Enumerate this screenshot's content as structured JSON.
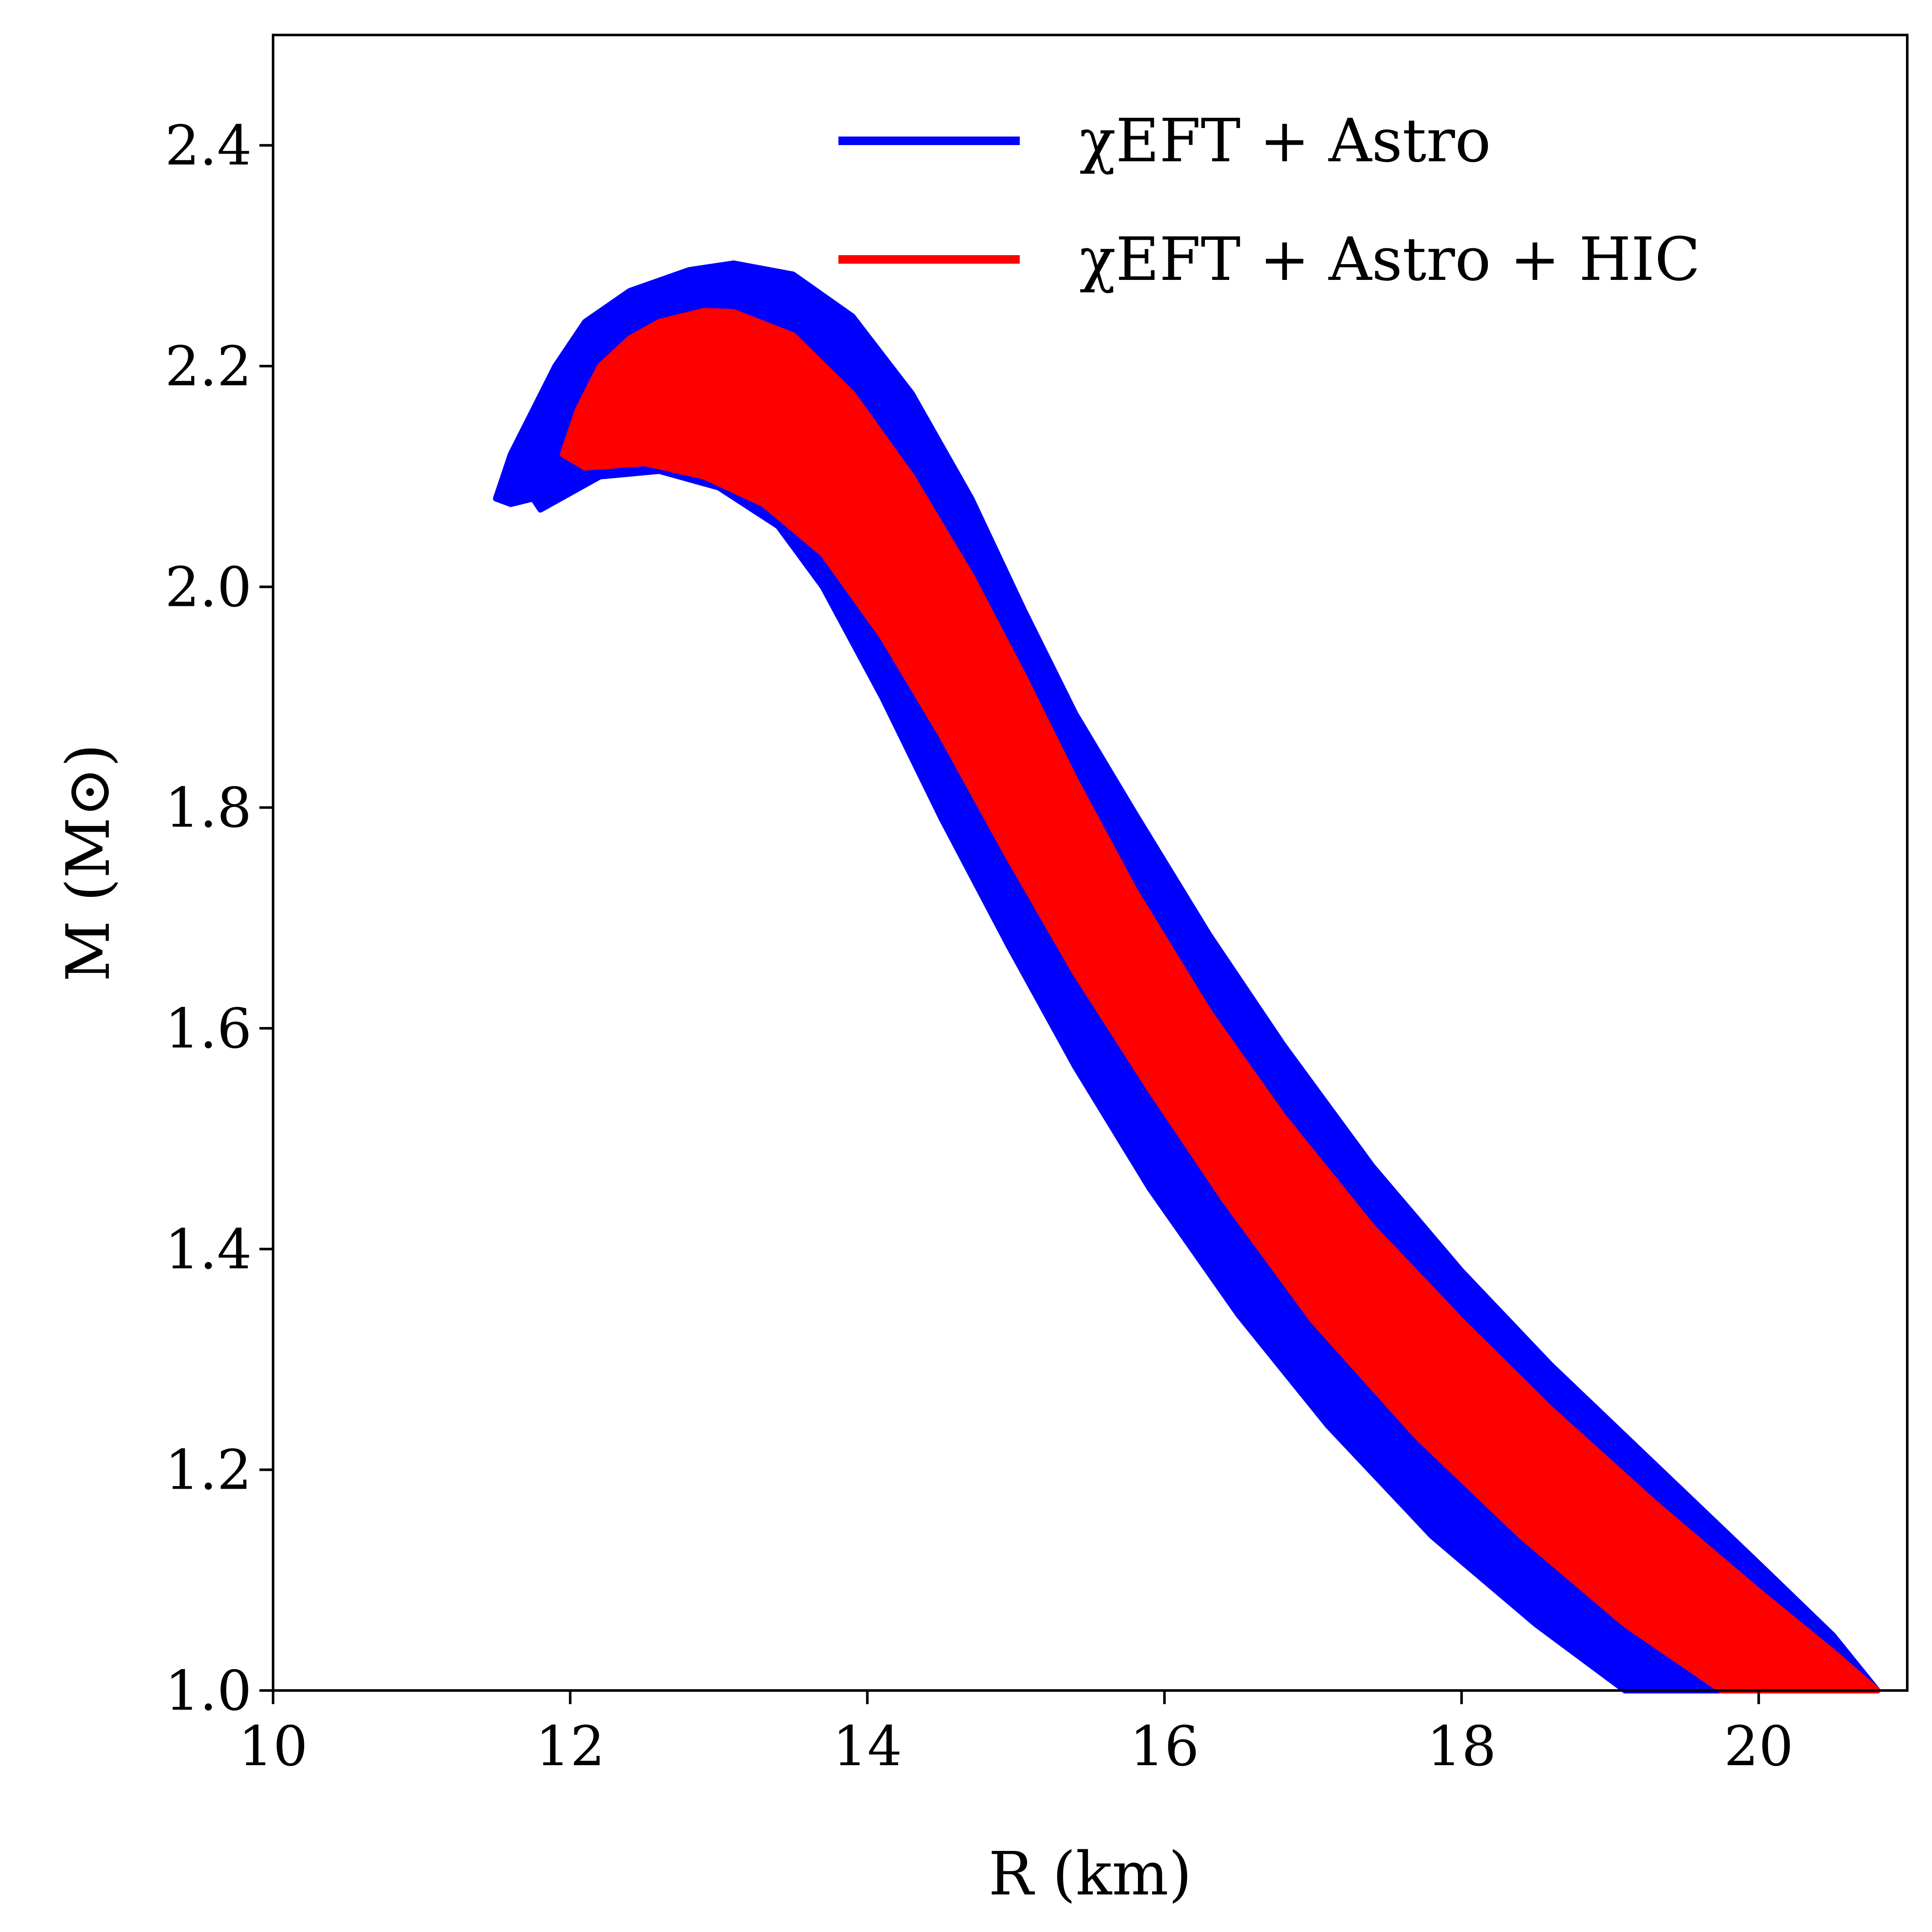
{
  "chart_data": {
    "type": "area",
    "title": "",
    "xlabel": "R (km)",
    "ylabel": "M (M⊙)",
    "xlim": [
      10,
      21
    ],
    "ylim": [
      1.0,
      2.5
    ],
    "xticks": [
      "10",
      "12",
      "14",
      "16",
      "18",
      "20"
    ],
    "yticks": [
      "1.0",
      "1.2",
      "1.4",
      "1.6",
      "1.8",
      "2.0",
      "2.2",
      "2.4"
    ],
    "xtick_values": [
      10,
      12,
      14,
      16,
      18,
      20
    ],
    "ytick_values": [
      1.0,
      1.2,
      1.4,
      1.6,
      1.8,
      2.0,
      2.2,
      2.4
    ],
    "grid": false,
    "legend_position": "top-right",
    "series": [
      {
        "name": "χEFT + Astro",
        "color": "#0000ff",
        "outer_boundary": [
          [
            11.5,
            2.08
          ],
          [
            11.6,
            2.12
          ],
          [
            11.75,
            2.16
          ],
          [
            11.9,
            2.2
          ],
          [
            12.1,
            2.24
          ],
          [
            12.4,
            2.268
          ],
          [
            12.8,
            2.287
          ],
          [
            13.1,
            2.293
          ],
          [
            13.5,
            2.283
          ],
          [
            13.9,
            2.245
          ],
          [
            14.3,
            2.175
          ],
          [
            14.7,
            2.08
          ],
          [
            15.05,
            1.98
          ],
          [
            15.4,
            1.885
          ],
          [
            15.8,
            1.795
          ],
          [
            16.3,
            1.685
          ],
          [
            16.8,
            1.585
          ],
          [
            17.4,
            1.475
          ],
          [
            18.0,
            1.38
          ],
          [
            18.6,
            1.295
          ],
          [
            19.3,
            1.205
          ],
          [
            20.0,
            1.115
          ],
          [
            20.5,
            1.05
          ],
          [
            20.8,
            1.0
          ]
        ],
        "inner_boundary": [
          [
            19.1,
            1.0
          ],
          [
            18.5,
            1.06
          ],
          [
            17.8,
            1.14
          ],
          [
            17.1,
            1.24
          ],
          [
            16.5,
            1.34
          ],
          [
            15.9,
            1.455
          ],
          [
            15.4,
            1.565
          ],
          [
            14.95,
            1.675
          ],
          [
            14.5,
            1.79
          ],
          [
            14.1,
            1.9
          ],
          [
            13.7,
            2.0
          ],
          [
            13.4,
            2.055
          ],
          [
            13.0,
            2.09
          ],
          [
            12.6,
            2.105
          ],
          [
            12.2,
            2.1
          ],
          [
            11.8,
            2.07
          ],
          [
            11.75,
            2.08
          ],
          [
            11.6,
            2.075
          ]
        ]
      },
      {
        "name": "χEFT + Astro + HIC",
        "color": "#ff0000",
        "outer_boundary": [
          [
            11.95,
            2.12
          ],
          [
            12.05,
            2.16
          ],
          [
            12.2,
            2.2
          ],
          [
            12.4,
            2.225
          ],
          [
            12.6,
            2.24
          ],
          [
            12.9,
            2.25
          ],
          [
            13.1,
            2.249
          ],
          [
            13.5,
            2.228
          ],
          [
            13.9,
            2.175
          ],
          [
            14.3,
            2.1
          ],
          [
            14.7,
            2.01
          ],
          [
            15.05,
            1.92
          ],
          [
            15.4,
            1.825
          ],
          [
            15.8,
            1.725
          ],
          [
            16.3,
            1.615
          ],
          [
            16.8,
            1.52
          ],
          [
            17.4,
            1.42
          ],
          [
            18.0,
            1.335
          ],
          [
            18.6,
            1.255
          ],
          [
            19.3,
            1.17
          ],
          [
            20.0,
            1.09
          ],
          [
            20.5,
            1.035
          ],
          [
            20.8,
            1.0
          ]
        ],
        "inner_boundary": [
          [
            19.75,
            1.0
          ],
          [
            19.1,
            1.06
          ],
          [
            18.4,
            1.14
          ],
          [
            17.7,
            1.23
          ],
          [
            17.0,
            1.335
          ],
          [
            16.4,
            1.445
          ],
          [
            15.9,
            1.545
          ],
          [
            15.4,
            1.65
          ],
          [
            14.95,
            1.755
          ],
          [
            14.5,
            1.865
          ],
          [
            14.1,
            1.955
          ],
          [
            13.7,
            2.03
          ],
          [
            13.3,
            2.075
          ],
          [
            12.9,
            2.1
          ],
          [
            12.5,
            2.112
          ],
          [
            12.1,
            2.108
          ],
          [
            11.95,
            2.12
          ]
        ]
      }
    ]
  }
}
